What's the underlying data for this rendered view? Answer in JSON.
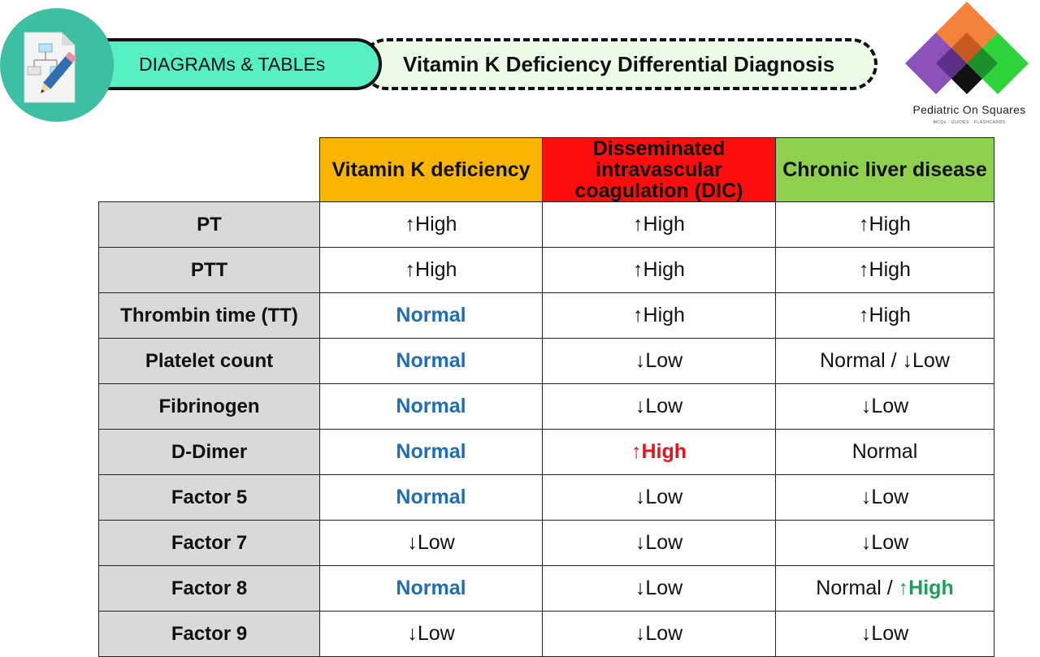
{
  "header": {
    "category_label": "DIAGRAMs & TABLEs",
    "title": "Vitamin K Deficiency Differential Diagnosis"
  },
  "logo": {
    "name": "Pediatric On Squares",
    "subtitle": "MCQs · GUIDES · FLASHCARDS"
  },
  "colors": {
    "vitamin_k_header": "#f9b500",
    "dic_header": "#fd0d0d",
    "cld_header": "#8fd04f",
    "row_header": "#d9d9d9",
    "normal_blue": "#1f6fb5",
    "high_red": "#e6141a",
    "high_green": "#1aa05a"
  },
  "table": {
    "columns": [
      "Vitamin K deficiency",
      "Disseminated intravascular coagulation (DIC)",
      "Chronic liver disease"
    ],
    "rows": [
      {
        "label": "PT",
        "vk": "↑High",
        "dic": "↑High",
        "cld": "↑High"
      },
      {
        "label": "PTT",
        "vk": "↑High",
        "dic": "↑High",
        "cld": "↑High"
      },
      {
        "label": "Thrombin time (TT)",
        "vk": "Normal",
        "dic": "↑High",
        "cld": "↑High"
      },
      {
        "label": "Platelet count",
        "vk": "Normal",
        "dic": "↓Low",
        "cld": "Normal / ↓Low"
      },
      {
        "label": "Fibrinogen",
        "vk": "Normal",
        "dic": "↓Low",
        "cld": "↓Low"
      },
      {
        "label": "D-Dimer",
        "vk": "Normal",
        "dic": "↑High",
        "cld": "Normal"
      },
      {
        "label": "Factor 5",
        "vk": "Normal",
        "dic": "↓Low",
        "cld": "↓Low"
      },
      {
        "label": "Factor 7",
        "vk": "↓Low",
        "dic": "↓Low",
        "cld": "↓Low"
      },
      {
        "label": "Factor 8",
        "vk": "Normal",
        "dic": "↓Low",
        "cld_a": "Normal / ",
        "cld_b": "↑High"
      },
      {
        "label": "Factor 9",
        "vk": "↓Low",
        "dic": "↓Low",
        "cld": "↓Low"
      }
    ]
  }
}
